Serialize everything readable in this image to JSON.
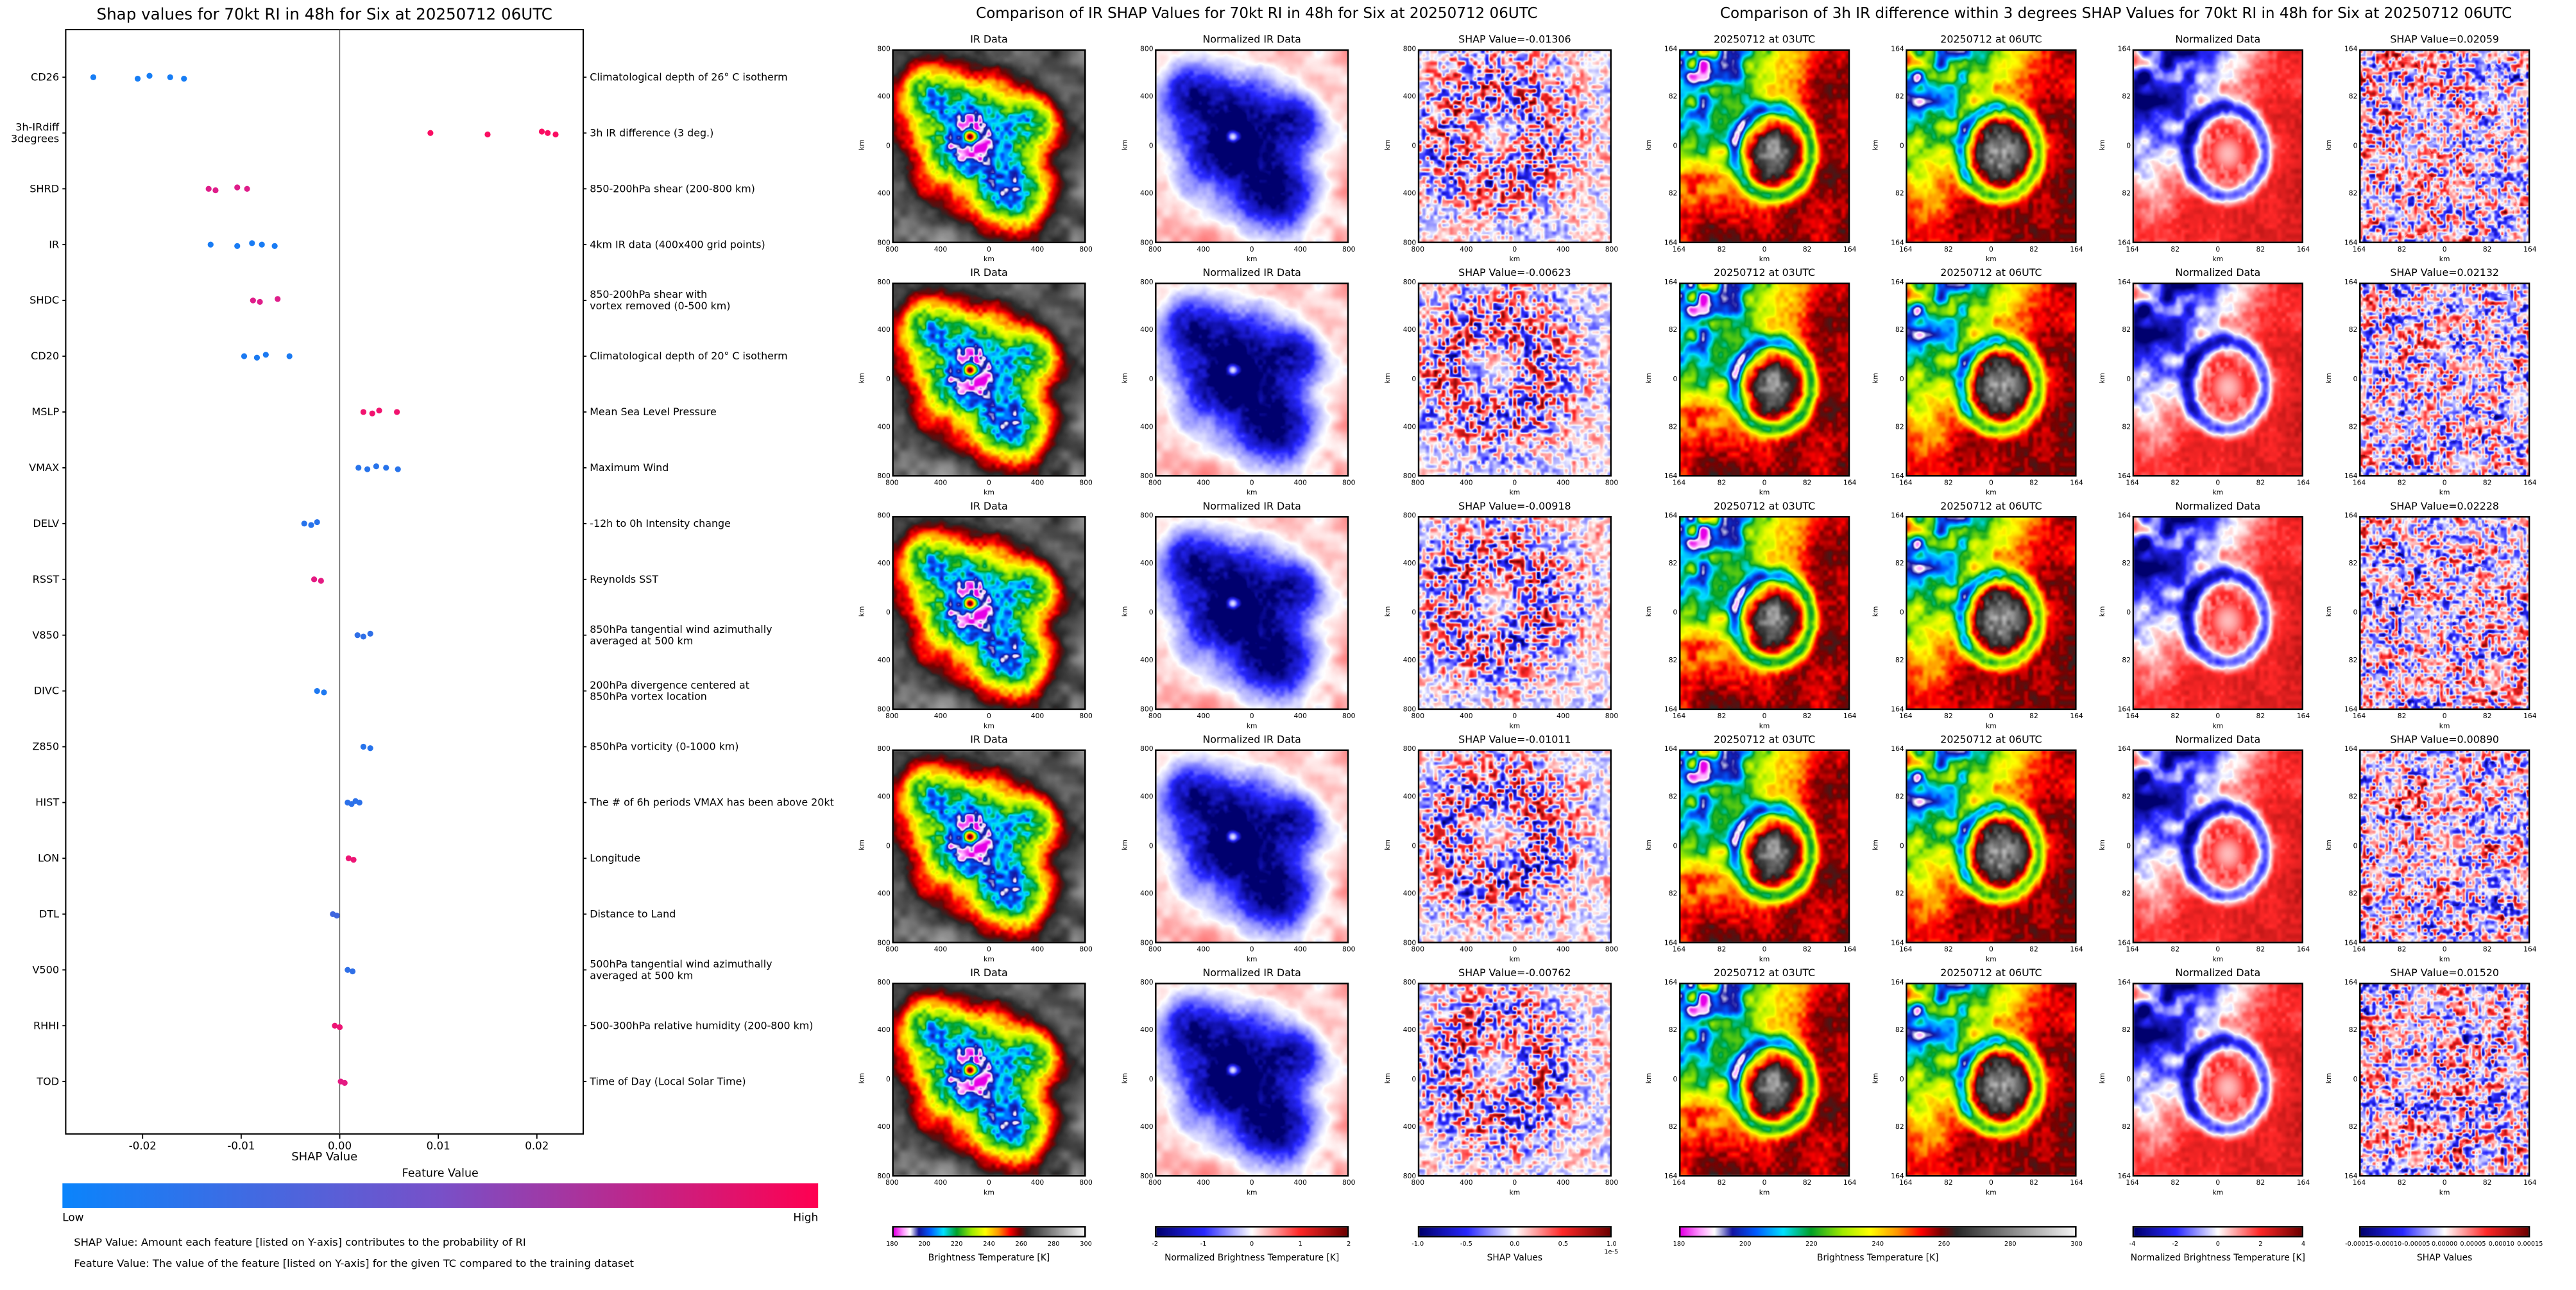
{
  "chart_data": [
    {
      "type": "scatter",
      "subtype": "shap-beeswarm",
      "title": "Shap values for 70kt RI in 48h for Six at 20250712 06UTC",
      "xlabel": "SHAP Value",
      "xlim": [
        -0.0278,
        0.0247
      ],
      "x_ticks": [
        "-0.02",
        "-0.01",
        "0.00",
        "0.01",
        "0.02"
      ],
      "colorbar": {
        "title": "Feature Value",
        "low_label": "Low",
        "high_label": "High",
        "low_color": "#0a84fc",
        "mid_color": "#7850c8",
        "high_color": "#ff0051"
      },
      "footnotes": [
        "SHAP Value: Amount each feature [listed on Y-axis] contributes to the probability of RI",
        "Feature Value: The value of the feature [listed on Y-axis] for the given TC compared to the training dataset"
      ],
      "features": [
        {
          "code": "CD26",
          "desc": "Climatological depth of 26° C isotherm",
          "level": 0.05,
          "shap_x": [
            -0.025,
            -0.0205,
            -0.0193,
            -0.0172,
            -0.0158
          ]
        },
        {
          "code": "3h-IRdiff\n3degrees",
          "desc": "3h IR difference (3 deg.)",
          "level": 0.97,
          "shap_x": [
            0.0092,
            0.015,
            0.0205,
            0.0211,
            0.0219
          ]
        },
        {
          "code": "SHRD",
          "desc": "850-200hPa shear (200-800 km)",
          "level": 0.82,
          "shap_x": [
            -0.0133,
            -0.0126,
            -0.0104,
            -0.0094
          ]
        },
        {
          "code": "IR",
          "desc": "4km IR data (400x400 grid points)",
          "level": 0.06,
          "shap_x": [
            -0.0131,
            -0.0104,
            -0.0089,
            -0.0079,
            -0.0066
          ]
        },
        {
          "code": "SHDC",
          "desc": "850-200hPa shear with\nvortex removed (0-500 km)",
          "level": 0.82,
          "shap_x": [
            -0.0088,
            -0.0081,
            -0.0063
          ]
        },
        {
          "code": "CD20",
          "desc": "Climatological depth of 20° C isotherm",
          "level": 0.07,
          "shap_x": [
            -0.0097,
            -0.0084,
            -0.0075,
            -0.0051
          ]
        },
        {
          "code": "MSLP",
          "desc": "Mean Sea Level Pressure",
          "level": 0.92,
          "shap_x": [
            0.0024,
            0.0033,
            0.004,
            0.0058
          ]
        },
        {
          "code": "VMAX",
          "desc": "Maximum Wind",
          "level": 0.12,
          "shap_x": [
            0.0019,
            0.0028,
            0.0037,
            0.0047,
            0.0059
          ]
        },
        {
          "code": "DELV",
          "desc": "-12h to 0h Intensity change",
          "level": 0.12,
          "shap_x": [
            -0.0036,
            -0.0029,
            -0.0023
          ]
        },
        {
          "code": "RSST",
          "desc": "Reynolds SST",
          "level": 0.85,
          "shap_x": [
            -0.0026,
            -0.0019
          ]
        },
        {
          "code": "V850",
          "desc": "850hPa tangential wind azimuthally\naveraged at 500 km",
          "level": 0.15,
          "shap_x": [
            0.0018,
            0.0024,
            0.0031
          ]
        },
        {
          "code": "DIVC",
          "desc": "200hPa divergence centered at\n850hPa vortex location",
          "level": 0.08,
          "shap_x": [
            -0.0023,
            -0.0016
          ]
        },
        {
          "code": "Z850",
          "desc": "850hPa vorticity (0-1000 km)",
          "level": 0.12,
          "shap_x": [
            0.0024,
            0.0031
          ]
        },
        {
          "code": "HIST",
          "desc": "The # of 6h periods VMAX has been above 20kt",
          "level": 0.14,
          "shap_x": [
            0.0008,
            0.0012,
            0.0016,
            0.002
          ]
        },
        {
          "code": "LON",
          "desc": "Longitude",
          "level": 0.9,
          "shap_x": [
            0.0009,
            0.0014
          ]
        },
        {
          "code": "DTL",
          "desc": "Distance to Land",
          "level": 0.22,
          "shap_x": [
            -0.0007,
            -0.0003
          ]
        },
        {
          "code": "V500",
          "desc": "500hPa tangential wind azimuthally\naveraged at 500 km",
          "level": 0.15,
          "shap_x": [
            0.0008,
            0.0013
          ]
        },
        {
          "code": "RHHI",
          "desc": "500-300hPa relative humidity (200-800 km)",
          "level": 0.9,
          "shap_x": [
            -0.0005,
            0.0
          ]
        },
        {
          "code": "TOD",
          "desc": "Time of Day (Local Solar Time)",
          "level": 0.85,
          "shap_x": [
            0.0001,
            0.0005
          ]
        }
      ]
    },
    {
      "type": "heatmap",
      "subtype": "ir-shap-grid",
      "title": "Comparison of IR SHAP Values for 70kt RI in 48h for Six at 20250712 06UTC",
      "col_titles": [
        "IR Data",
        "Normalized IR Data"
      ],
      "shap_labels": [
        "SHAP Value=-0.01306",
        "SHAP Value=-0.00623",
        "SHAP Value=-0.00918",
        "SHAP Value=-0.01011",
        "SHAP Value=-0.00762"
      ],
      "shap_values": [
        -0.01306,
        -0.00623,
        -0.00918,
        -0.01011,
        -0.00762
      ],
      "axis_label": "km",
      "axis_ticks": [
        "800",
        "400",
        "0",
        "400",
        "800"
      ],
      "colorbars": [
        {
          "label": "Brightness Temperature [K]",
          "ticks": [
            "180",
            "200",
            "220",
            "240",
            "260",
            "280",
            "300"
          ],
          "cmap": "ir"
        },
        {
          "label": "Normalized Brightness Temperature [K]",
          "ticks": [
            "-2",
            "-1",
            "0",
            "1",
            "2"
          ],
          "cmap": "seismic"
        },
        {
          "label": "SHAP Values",
          "ticks": [
            "-1.0",
            "-0.5",
            "0.0",
            "0.5",
            "1.0"
          ],
          "scale": "1e-5",
          "cmap": "seismic"
        }
      ]
    },
    {
      "type": "heatmap",
      "subtype": "ir-diff-shap-grid",
      "title": "Comparison of 3h IR difference within 3 degrees SHAP Values for 70kt RI in 48h for Six at 20250712 06UTC",
      "col_titles": [
        "20250712 at 03UTC",
        "20250712 at 06UTC",
        "Normalized Data"
      ],
      "shap_labels": [
        "SHAP Value=0.02059",
        "SHAP Value=0.02132",
        "SHAP Value=0.02228",
        "SHAP Value=0.00890",
        "SHAP Value=0.01520"
      ],
      "shap_values": [
        0.02059,
        0.02132,
        0.02228,
        0.0089,
        0.0152
      ],
      "axis_label": "km",
      "axis_ticks": [
        "164",
        "82",
        "0",
        "82",
        "164"
      ],
      "colorbars": [
        {
          "label": "Brightness Temperature [K]",
          "ticks": [
            "180",
            "200",
            "220",
            "240",
            "260",
            "280",
            "300"
          ],
          "cmap": "ir"
        },
        {
          "label": "Normalized Brightness Temperature [K]",
          "ticks": [
            "-4",
            "-2",
            "0",
            "2",
            "4"
          ],
          "cmap": "seismic"
        },
        {
          "label": "SHAP Values",
          "ticks": [
            "-0.00015",
            "-0.00010",
            "-0.00005",
            "0.00000",
            "0.00005",
            "0.00010",
            "0.00015"
          ],
          "cmap": "seismic"
        }
      ]
    }
  ]
}
